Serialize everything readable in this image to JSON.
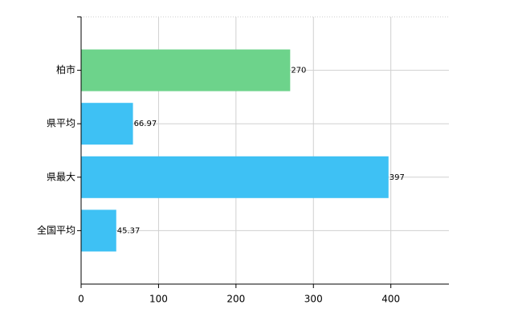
{
  "chart_data": {
    "type": "barh",
    "categories": [
      "柏市",
      "県平均",
      "県最大",
      "全国平均"
    ],
    "values": [
      270,
      66.97,
      397,
      45.37
    ],
    "colors": [
      "#6dd38b",
      "#3ec1f4",
      "#3ec1f4",
      "#3ec1f4"
    ],
    "xlim": [
      0,
      475
    ],
    "xticks": [
      0,
      100,
      200,
      300,
      400
    ],
    "grid": true
  }
}
